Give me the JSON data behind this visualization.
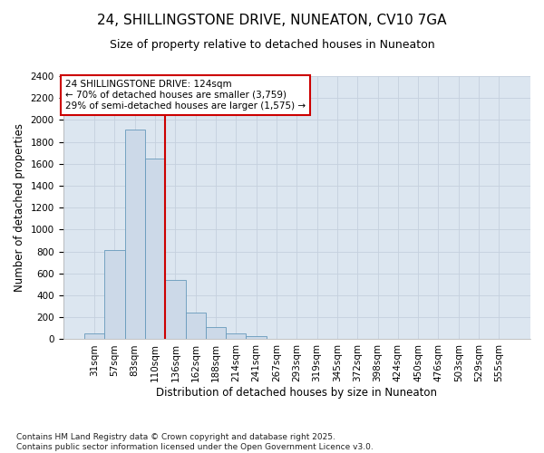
{
  "title_line1": "24, SHILLINGSTONE DRIVE, NUNEATON, CV10 7GA",
  "title_line2": "Size of property relative to detached houses in Nuneaton",
  "xlabel": "Distribution of detached houses by size in Nuneaton",
  "ylabel": "Number of detached properties",
  "footnote": "Contains HM Land Registry data © Crown copyright and database right 2025.\nContains public sector information licensed under the Open Government Licence v3.0.",
  "categories": [
    "31sqm",
    "57sqm",
    "83sqm",
    "110sqm",
    "136sqm",
    "162sqm",
    "188sqm",
    "214sqm",
    "241sqm",
    "267sqm",
    "293sqm",
    "319sqm",
    "345sqm",
    "372sqm",
    "398sqm",
    "424sqm",
    "450sqm",
    "476sqm",
    "503sqm",
    "529sqm",
    "555sqm"
  ],
  "values": [
    50,
    810,
    1910,
    1650,
    545,
    240,
    110,
    50,
    25,
    0,
    0,
    0,
    0,
    0,
    0,
    0,
    0,
    0,
    0,
    0,
    0
  ],
  "bar_color": "#ccd9e8",
  "bar_edge_color": "#6699bb",
  "grid_color": "#c5d0de",
  "background_color": "#dce6f0",
  "vline_color": "#cc0000",
  "vline_index": 3.5,
  "annotation_text": "24 SHILLINGSTONE DRIVE: 124sqm\n← 70% of detached houses are smaller (3,759)\n29% of semi-detached houses are larger (1,575) →",
  "annotation_box_edgecolor": "#cc0000",
  "annotation_box_facecolor": "#ffffff",
  "ylim": [
    0,
    2400
  ],
  "yticks": [
    0,
    200,
    400,
    600,
    800,
    1000,
    1200,
    1400,
    1600,
    1800,
    2000,
    2200,
    2400
  ],
  "title_fontsize": 11,
  "subtitle_fontsize": 9,
  "axis_label_fontsize": 8.5,
  "tick_fontsize": 7.5,
  "annotation_fontsize": 7.5,
  "footnote_fontsize": 6.5
}
